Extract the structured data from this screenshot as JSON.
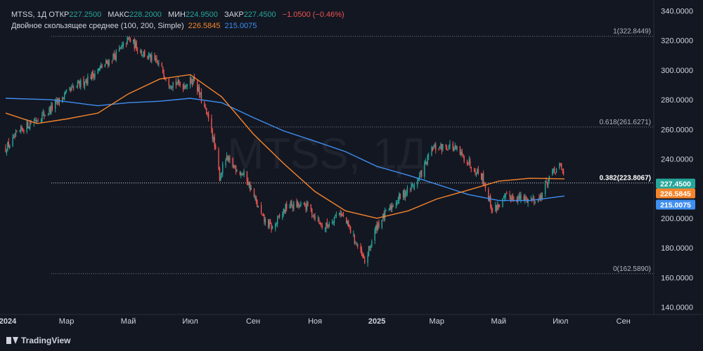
{
  "header": {
    "symbol_line": "MTSS, 1Д",
    "open_label": "ОТКР",
    "open_value": "227.2500",
    "high_label": "МАКС",
    "high_value": "228.2000",
    "low_label": "МИН",
    "low_value": "224.9500",
    "close_label": "ЗАКР",
    "close_value": "227.4500",
    "change": "−1.0500 (−0.46%)",
    "ma_title": "Двойное скользящее среднее (100, 200, Simple)",
    "ma_fast_value": "226.5845",
    "ma_slow_value": "215.0075"
  },
  "watermark": "MTSS, 1Д",
  "brand": "TradingView",
  "colors": {
    "background": "#131722",
    "up": "#26a69a",
    "down": "#ef5350",
    "ma_fast": "#f5842b",
    "ma_slow": "#3f8ef0",
    "text": "#d1d4dc"
  },
  "chart_data": {
    "type": "candlestick",
    "y_axis": {
      "range": [
        135,
        345
      ],
      "ticks": [
        340,
        320,
        300,
        280,
        260,
        240,
        220,
        200,
        180,
        160,
        140
      ],
      "tick_labels": [
        "340.0000",
        "320.0000",
        "300.0000",
        "280.0000",
        "260.0000",
        "240.0000",
        "220.0000",
        "200.0000",
        "180.0000",
        "160.0000",
        "140.0000"
      ]
    },
    "x_axis": {
      "labels": [
        "2024",
        "Мар",
        "Май",
        "Июл",
        "Сен",
        "Ноя",
        "2025",
        "Мар",
        "Май",
        "Июл",
        "Сен"
      ],
      "bold": [
        "2024",
        "2025"
      ],
      "dates": [
        "2024-01-01",
        "2024-03-01",
        "2024-05-01",
        "2024-07-01",
        "2024-09-01",
        "2024-11-01",
        "2025-01-01",
        "2025-03-01",
        "2025-05-01",
        "2025-07-01",
        "2025-09-01"
      ],
      "range": [
        "2024-01-01",
        "2025-10-01"
      ]
    },
    "close_path": [
      [
        "2024-01-01",
        247
      ],
      [
        "2024-01-20",
        262
      ],
      [
        "2024-02-10",
        271
      ],
      [
        "2024-03-01",
        284
      ],
      [
        "2024-03-25",
        296
      ],
      [
        "2024-04-10",
        305
      ],
      [
        "2024-04-25",
        315
      ],
      [
        "2024-05-01",
        321
      ],
      [
        "2024-05-15",
        312
      ],
      [
        "2024-06-01",
        303
      ],
      [
        "2024-06-10",
        292
      ],
      [
        "2024-06-25",
        290
      ],
      [
        "2024-07-05",
        294
      ],
      [
        "2024-07-15",
        274
      ],
      [
        "2024-07-22",
        260
      ],
      [
        "2024-07-30",
        228
      ],
      [
        "2024-08-05",
        240
      ],
      [
        "2024-08-25",
        228
      ],
      [
        "2024-09-10",
        200
      ],
      [
        "2024-09-20",
        193
      ],
      [
        "2024-10-05",
        209
      ],
      [
        "2024-10-25",
        208
      ],
      [
        "2024-11-10",
        193
      ],
      [
        "2024-11-25",
        205
      ],
      [
        "2024-12-05",
        193
      ],
      [
        "2024-12-20",
        170
      ],
      [
        "2025-01-01",
        195
      ],
      [
        "2025-01-20",
        212
      ],
      [
        "2025-02-10",
        225
      ],
      [
        "2025-02-25",
        247
      ],
      [
        "2025-03-15",
        249
      ],
      [
        "2025-03-31",
        239
      ],
      [
        "2025-04-15",
        228
      ],
      [
        "2025-04-25",
        205
      ],
      [
        "2025-05-10",
        215
      ],
      [
        "2025-05-25",
        213
      ],
      [
        "2025-06-10",
        213
      ],
      [
        "2025-06-20",
        228
      ],
      [
        "2025-07-01",
        235
      ],
      [
        "2025-07-05",
        227.45
      ]
    ],
    "ma_fast": {
      "name": "100",
      "points": [
        [
          "2024-01-01",
          271
        ],
        [
          "2024-02-01",
          264
        ],
        [
          "2024-03-01",
          267
        ],
        [
          "2024-04-01",
          271
        ],
        [
          "2024-05-01",
          284
        ],
        [
          "2024-06-01",
          294
        ],
        [
          "2024-07-01",
          297
        ],
        [
          "2024-08-01",
          282
        ],
        [
          "2024-09-01",
          257
        ],
        [
          "2024-10-01",
          237
        ],
        [
          "2024-11-01",
          218
        ],
        [
          "2024-12-01",
          205
        ],
        [
          "2025-01-01",
          200
        ],
        [
          "2025-02-01",
          205
        ],
        [
          "2025-03-01",
          213
        ],
        [
          "2025-04-01",
          219
        ],
        [
          "2025-05-01",
          225
        ],
        [
          "2025-06-01",
          227
        ],
        [
          "2025-07-05",
          226.58
        ]
      ]
    },
    "ma_slow": {
      "name": "200",
      "points": [
        [
          "2024-01-01",
          281
        ],
        [
          "2024-02-15",
          280
        ],
        [
          "2024-04-01",
          276
        ],
        [
          "2024-05-01",
          278
        ],
        [
          "2024-06-01",
          279
        ],
        [
          "2024-07-01",
          281
        ],
        [
          "2024-08-01",
          278
        ],
        [
          "2024-09-01",
          268
        ],
        [
          "2024-10-01",
          259
        ],
        [
          "2024-11-01",
          252
        ],
        [
          "2024-12-01",
          245
        ],
        [
          "2025-01-01",
          235
        ],
        [
          "2025-02-01",
          229
        ],
        [
          "2025-03-01",
          223
        ],
        [
          "2025-04-01",
          216
        ],
        [
          "2025-05-01",
          212
        ],
        [
          "2025-06-01",
          212
        ],
        [
          "2025-07-05",
          215.01
        ]
      ]
    },
    "fibonacci": {
      "start": "2024-02-15",
      "end": "2025-10-01",
      "levels": [
        {
          "label": "1(322.8449)",
          "value": 322.8449
        },
        {
          "label": "0.618(261.6271)",
          "value": 261.6271
        },
        {
          "label": "0.382(223.8067)",
          "value": 223.8067
        },
        {
          "label": "0(162.5890)",
          "value": 162.589
        }
      ]
    },
    "price_tags": [
      {
        "label": "227.4500",
        "value": 227.45,
        "color": "#26a69a"
      },
      {
        "label": "226.5845",
        "value": 226.5845,
        "color": "#f5842b"
      },
      {
        "label": "215.0075",
        "value": 215.0075,
        "color": "#3f8ef0"
      }
    ]
  }
}
